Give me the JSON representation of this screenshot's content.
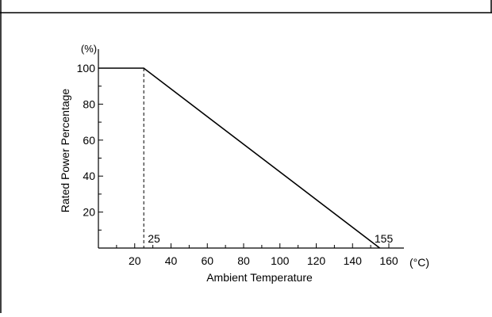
{
  "chart_data": {
    "type": "line",
    "title": "",
    "xlabel": "Ambient Temperature",
    "ylabel": "Rated Power Percentage",
    "x_unit": "(°C)",
    "y_unit": "(%)",
    "xlim": [
      0,
      160
    ],
    "ylim": [
      0,
      100
    ],
    "x_ticks": [
      20,
      40,
      60,
      80,
      100,
      120,
      140,
      160
    ],
    "y_ticks": [
      20,
      40,
      60,
      80,
      100
    ],
    "grid": false,
    "series": [
      {
        "name": "",
        "x": [
          0,
          25,
          155
        ],
        "y": [
          100,
          100,
          0
        ]
      }
    ],
    "annotations": [
      {
        "text": "25",
        "x": 25,
        "y": 0,
        "style": "dashed-vertical"
      },
      {
        "text": "155",
        "x": 155,
        "y": 0
      }
    ]
  }
}
